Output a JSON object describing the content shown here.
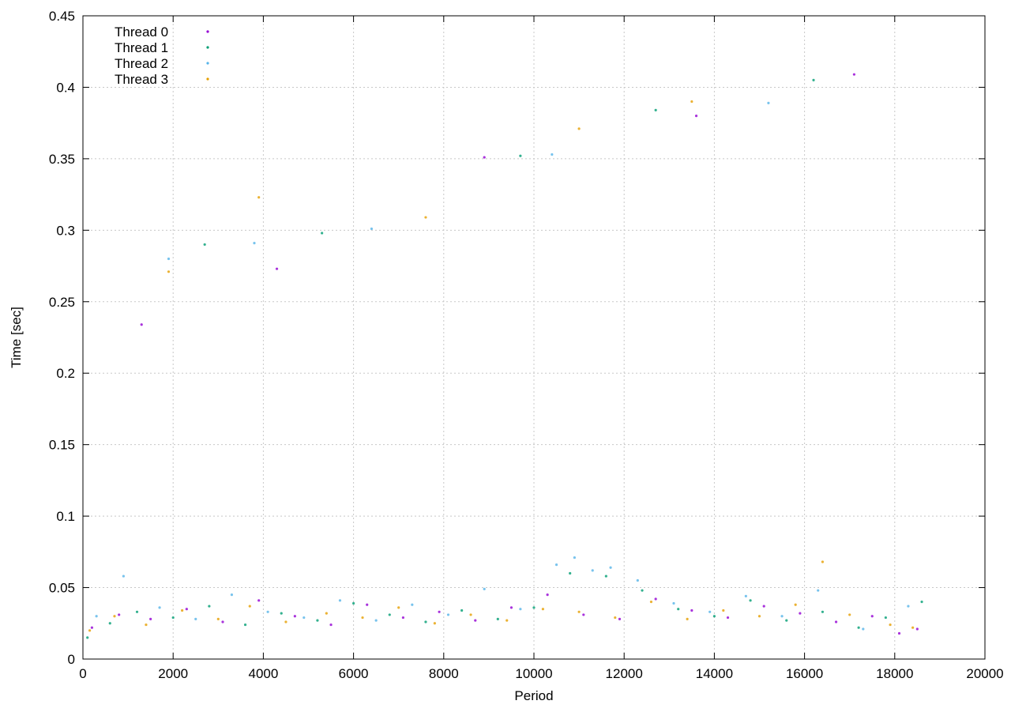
{
  "chart_data": {
    "type": "scatter",
    "x_label": "Period",
    "y_label": "Time [sec]",
    "xlim": [
      0,
      20000
    ],
    "xticks": [
      0,
      2000,
      4000,
      6000,
      8000,
      10000,
      12000,
      14000,
      16000,
      18000,
      20000
    ],
    "ylim": [
      0,
      0.45
    ],
    "yticks": [
      0,
      0.05,
      0.1,
      0.15,
      0.2,
      0.25,
      0.3,
      0.35,
      0.4,
      0.45
    ],
    "grid": true,
    "legend": "top-left",
    "series": [
      {
        "name": "Thread 0",
        "color": "#9400d3",
        "x": [
          200,
          800,
          1500,
          2300,
          3100,
          3900,
          4700,
          5500,
          6300,
          7100,
          7900,
          8700,
          9500,
          10300,
          11100,
          11900,
          12700,
          13500,
          14300,
          15100,
          15900,
          16700,
          17500,
          18100,
          18500,
          1300,
          4300,
          8900,
          13600,
          17100
        ],
        "y": [
          0.022,
          0.031,
          0.028,
          0.035,
          0.026,
          0.041,
          0.03,
          0.024,
          0.038,
          0.029,
          0.033,
          0.027,
          0.036,
          0.045,
          0.031,
          0.028,
          0.042,
          0.034,
          0.029,
          0.037,
          0.032,
          0.026,
          0.03,
          0.018,
          0.021,
          0.234,
          0.273,
          0.351,
          0.38,
          0.409
        ]
      },
      {
        "name": "Thread 1",
        "color": "#009e73",
        "x": [
          100,
          600,
          1200,
          2000,
          2800,
          3600,
          4400,
          5200,
          6000,
          6800,
          7600,
          8400,
          9200,
          10000,
          10800,
          11600,
          12400,
          13200,
          14000,
          14800,
          15600,
          16400,
          17200,
          17800,
          18600,
          2700,
          5300,
          9700,
          12700,
          16200
        ],
        "y": [
          0.015,
          0.025,
          0.033,
          0.029,
          0.037,
          0.024,
          0.032,
          0.027,
          0.039,
          0.031,
          0.026,
          0.034,
          0.028,
          0.036,
          0.06,
          0.058,
          0.048,
          0.035,
          0.03,
          0.041,
          0.027,
          0.033,
          0.022,
          0.029,
          0.04,
          0.29,
          0.298,
          0.352,
          0.384,
          0.405
        ]
      },
      {
        "name": "Thread 2",
        "color": "#56b4e9",
        "x": [
          300,
          900,
          1700,
          2500,
          3300,
          4100,
          4900,
          5700,
          6500,
          7300,
          8100,
          8900,
          9700,
          10500,
          10900,
          11300,
          11700,
          12300,
          13100,
          13900,
          14700,
          15500,
          16300,
          17300,
          18300,
          1900,
          3800,
          6400,
          10400,
          15200
        ],
        "y": [
          0.03,
          0.058,
          0.036,
          0.028,
          0.045,
          0.033,
          0.029,
          0.041,
          0.027,
          0.038,
          0.031,
          0.049,
          0.035,
          0.066,
          0.071,
          0.062,
          0.064,
          0.055,
          0.039,
          0.033,
          0.044,
          0.03,
          0.048,
          0.021,
          0.037,
          0.28,
          0.291,
          0.301,
          0.353,
          0.389
        ]
      },
      {
        "name": "Thread 3",
        "color": "#e69f00",
        "x": [
          150,
          700,
          1400,
          2200,
          3000,
          3700,
          4500,
          5400,
          6200,
          7000,
          7800,
          8600,
          9400,
          10200,
          11000,
          11800,
          12600,
          13400,
          14200,
          15000,
          15800,
          16400,
          17000,
          17900,
          18400,
          1900,
          3900,
          7600,
          11000,
          13500
        ],
        "y": [
          0.02,
          0.03,
          0.024,
          0.034,
          0.028,
          0.037,
          0.026,
          0.032,
          0.029,
          0.036,
          0.025,
          0.031,
          0.027,
          0.035,
          0.033,
          0.029,
          0.04,
          0.028,
          0.034,
          0.03,
          0.038,
          0.068,
          0.031,
          0.024,
          0.022,
          0.271,
          0.323,
          0.309,
          0.371,
          0.39
        ]
      }
    ]
  }
}
